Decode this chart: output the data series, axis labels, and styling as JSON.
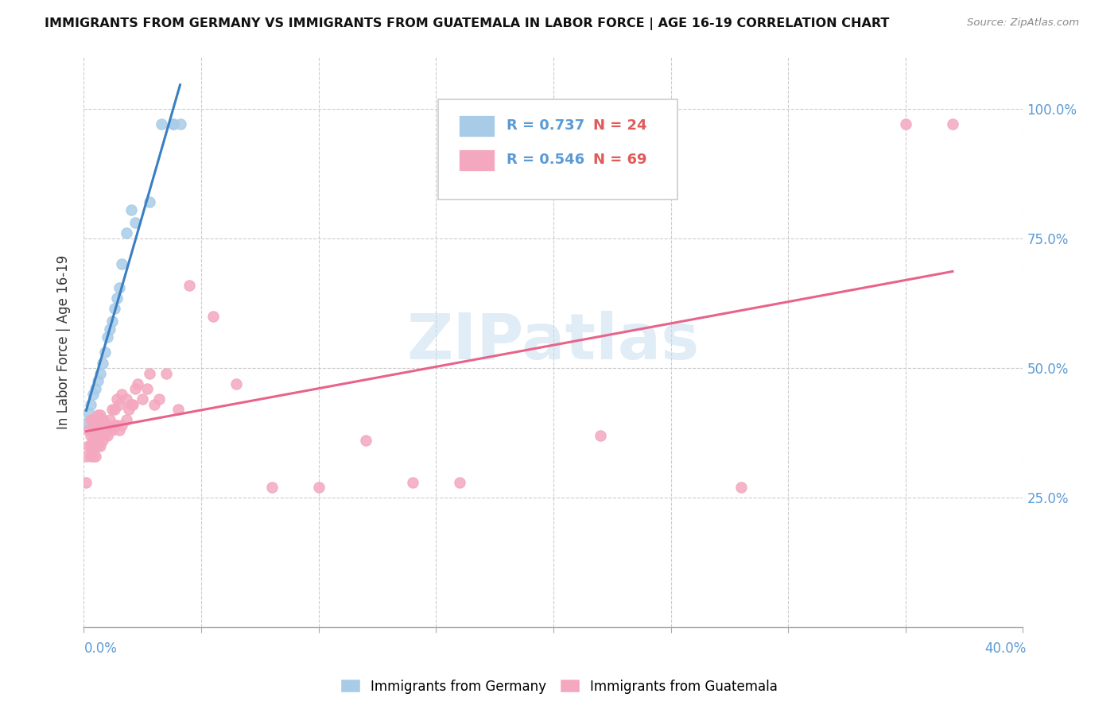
{
  "title": "IMMIGRANTS FROM GERMANY VS IMMIGRANTS FROM GUATEMALA IN LABOR FORCE | AGE 16-19 CORRELATION CHART",
  "source": "Source: ZipAtlas.com",
  "ylabel": "In Labor Force | Age 16-19",
  "R_germany": 0.737,
  "N_germany": 24,
  "R_guatemala": 0.546,
  "N_guatemala": 69,
  "color_germany": "#a8cce8",
  "color_guatemala": "#f4a8bf",
  "line_germany": "#3a7fc1",
  "line_guatemala": "#e8638a",
  "watermark": "ZIPatlas",
  "legend_germany": "Immigrants from Germany",
  "legend_guatemala": "Immigrants from Guatemala",
  "xlim": [
    0,
    0.4
  ],
  "ylim": [
    0,
    1.1
  ],
  "germany_x": [
    0.001,
    0.002,
    0.003,
    0.004,
    0.005,
    0.006,
    0.007,
    0.008,
    0.009,
    0.01,
    0.011,
    0.012,
    0.013,
    0.014,
    0.015,
    0.016,
    0.018,
    0.02,
    0.022,
    0.028,
    0.033,
    0.038,
    0.038,
    0.041
  ],
  "germany_y": [
    0.395,
    0.415,
    0.43,
    0.45,
    0.46,
    0.475,
    0.49,
    0.51,
    0.53,
    0.56,
    0.575,
    0.59,
    0.615,
    0.635,
    0.655,
    0.7,
    0.76,
    0.805,
    0.78,
    0.82,
    0.97,
    0.97,
    0.97,
    0.97
  ],
  "guatemala_x": [
    0.001,
    0.001,
    0.002,
    0.002,
    0.003,
    0.003,
    0.003,
    0.003,
    0.004,
    0.004,
    0.004,
    0.004,
    0.005,
    0.005,
    0.005,
    0.005,
    0.006,
    0.006,
    0.006,
    0.006,
    0.007,
    0.007,
    0.007,
    0.007,
    0.008,
    0.008,
    0.008,
    0.009,
    0.009,
    0.01,
    0.01,
    0.011,
    0.011,
    0.012,
    0.012,
    0.013,
    0.013,
    0.014,
    0.014,
    0.015,
    0.015,
    0.016,
    0.016,
    0.018,
    0.018,
    0.019,
    0.02,
    0.021,
    0.022,
    0.023,
    0.025,
    0.027,
    0.028,
    0.03,
    0.032,
    0.035,
    0.04,
    0.045,
    0.055,
    0.065,
    0.08,
    0.1,
    0.12,
    0.14,
    0.16,
    0.22,
    0.28,
    0.35,
    0.37
  ],
  "guatemala_y": [
    0.33,
    0.28,
    0.35,
    0.38,
    0.33,
    0.35,
    0.37,
    0.4,
    0.33,
    0.36,
    0.38,
    0.4,
    0.33,
    0.35,
    0.37,
    0.39,
    0.35,
    0.37,
    0.39,
    0.41,
    0.35,
    0.37,
    0.39,
    0.41,
    0.36,
    0.38,
    0.4,
    0.37,
    0.39,
    0.37,
    0.39,
    0.38,
    0.4,
    0.38,
    0.42,
    0.39,
    0.42,
    0.39,
    0.44,
    0.38,
    0.43,
    0.39,
    0.45,
    0.4,
    0.44,
    0.42,
    0.43,
    0.43,
    0.46,
    0.47,
    0.44,
    0.46,
    0.49,
    0.43,
    0.44,
    0.49,
    0.42,
    0.66,
    0.6,
    0.47,
    0.27,
    0.27,
    0.36,
    0.28,
    0.28,
    0.37,
    0.27,
    0.97,
    0.97
  ]
}
